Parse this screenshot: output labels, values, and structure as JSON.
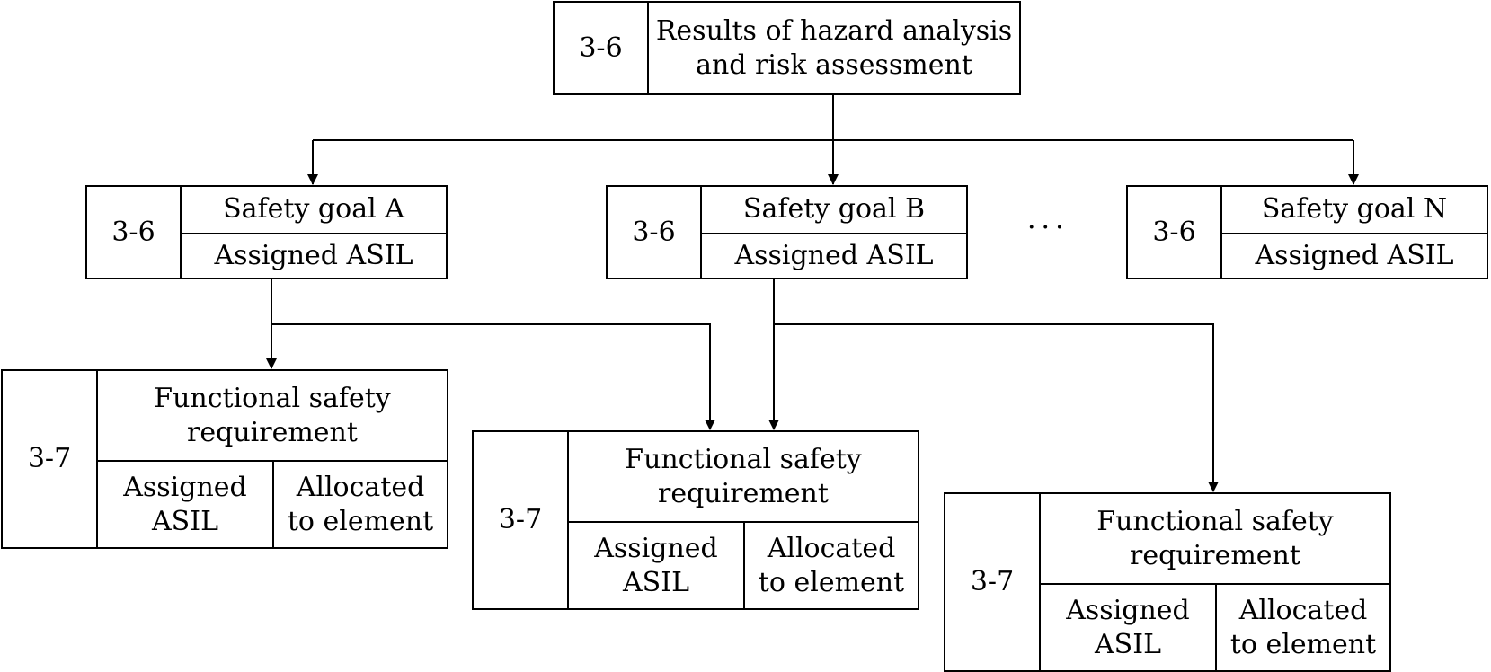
{
  "hara": {
    "ref": "3-6",
    "title_line1": "Results of hazard analysis",
    "title_line2": "and risk assessment"
  },
  "safety_goals": [
    {
      "ref": "3-6",
      "goal": "Safety goal A",
      "asil": "Assigned ASIL"
    },
    {
      "ref": "3-6",
      "goal": "Safety goal B",
      "asil": "Assigned ASIL"
    },
    {
      "ref": "3-6",
      "goal": "Safety goal N",
      "asil": "Assigned ASIL"
    }
  ],
  "ellipsis": "···",
  "fsrs": [
    {
      "ref": "3-7",
      "req_line1": "Functional safety",
      "req_line2": "requirement",
      "asil_line1": "Assigned",
      "asil_line2": "ASIL",
      "elem_line1": "Allocated",
      "elem_line2": "to element"
    },
    {
      "ref": "3-7",
      "req_line1": "Functional safety",
      "req_line2": "requirement",
      "asil_line1": "Assigned",
      "asil_line2": "ASIL",
      "elem_line1": "Allocated",
      "elem_line2": "to element"
    },
    {
      "ref": "3-7",
      "req_line1": "Functional safety",
      "req_line2": "requirement",
      "asil_line1": "Assigned",
      "asil_line2": "ASIL",
      "elem_line1": "Allocated",
      "elem_line2": "to element"
    }
  ]
}
